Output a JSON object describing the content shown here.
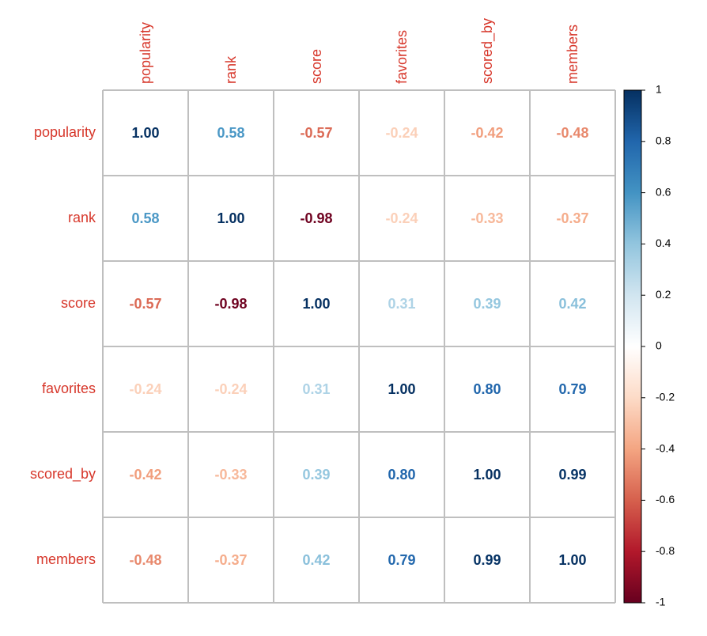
{
  "chart_data": {
    "type": "heatmap",
    "variables": [
      "popularity",
      "rank",
      "score",
      "favorites",
      "scored_by",
      "members"
    ],
    "values": [
      [
        1.0,
        0.58,
        -0.57,
        -0.24,
        -0.42,
        -0.48
      ],
      [
        0.58,
        1.0,
        -0.98,
        -0.24,
        -0.33,
        -0.37
      ],
      [
        -0.57,
        -0.98,
        1.0,
        0.31,
        0.39,
        0.42
      ],
      [
        -0.24,
        -0.24,
        0.31,
        1.0,
        0.8,
        0.79
      ],
      [
        -0.42,
        -0.33,
        0.39,
        0.8,
        1.0,
        0.99
      ],
      [
        -0.48,
        -0.37,
        0.42,
        0.79,
        0.99,
        1.0
      ]
    ],
    "value_labels": [
      [
        "1.00",
        "0.58",
        "-0.57",
        "-0.24",
        "-0.42",
        "-0.48"
      ],
      [
        "0.58",
        "1.00",
        "-0.98",
        "-0.24",
        "-0.33",
        "-0.37"
      ],
      [
        "-0.57",
        "-0.98",
        "1.00",
        "0.31",
        "0.39",
        "0.42"
      ],
      [
        "-0.24",
        "-0.24",
        "0.31",
        "1.00",
        "0.80",
        "0.79"
      ],
      [
        "-0.42",
        "-0.33",
        "0.39",
        "0.80",
        "1.00",
        "0.99"
      ],
      [
        "-0.48",
        "-0.37",
        "0.42",
        "0.79",
        "0.99",
        "1.00"
      ]
    ],
    "colorbar": {
      "range": [
        -1,
        1
      ],
      "ticks": [
        "1",
        "0.8",
        "0.6",
        "0.4",
        "0.2",
        "0",
        "-0.2",
        "-0.4",
        "-0.6",
        "-0.8",
        "-1"
      ]
    },
    "colors": {
      "label": "#d7372b",
      "grid": "#bfbfbf",
      "palette": [
        "#67001f",
        "#b2182b",
        "#d6604d",
        "#f4a582",
        "#fddbc7",
        "#ffffff",
        "#d1e5f0",
        "#92c5de",
        "#4393c3",
        "#2166ac",
        "#053061"
      ]
    }
  }
}
